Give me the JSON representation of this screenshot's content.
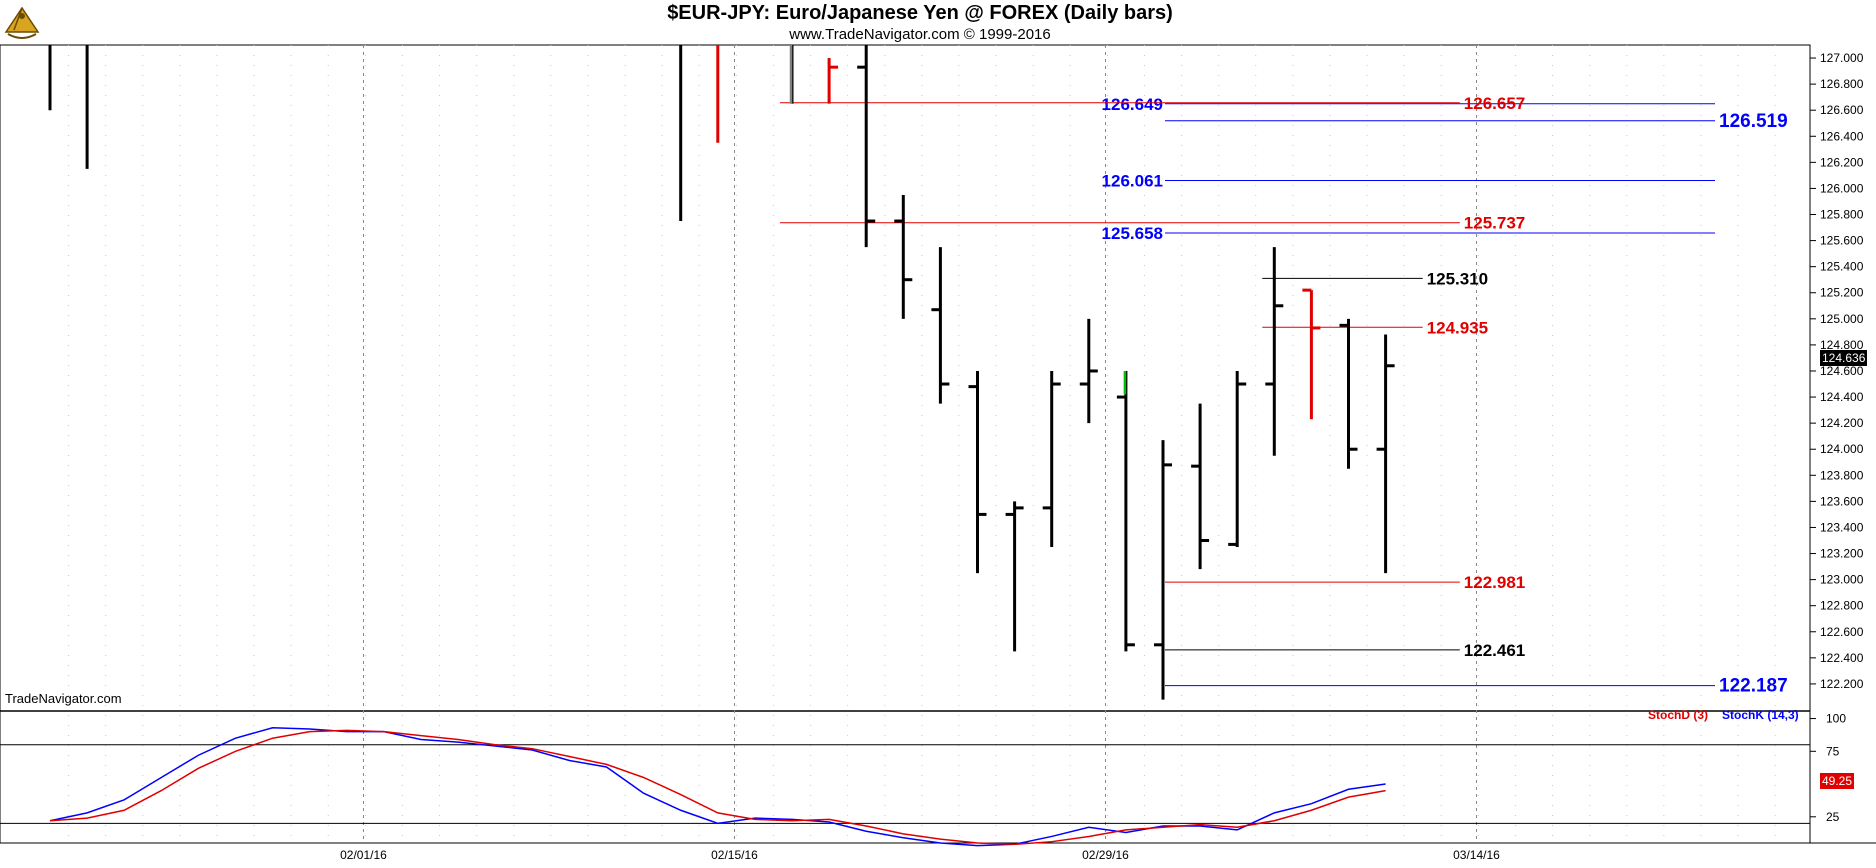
{
  "header": {
    "title": "$EUR-JPY:  Euro/Japanese Yen @ FOREX  (Daily bars)",
    "subtitle": "www.TradeNavigator.com © 1999-2016",
    "watermark": "TradeNavigator.com",
    "logo_icon": "sextant-logo-icon"
  },
  "colors": {
    "bar": "#000000",
    "bar_down": "#e00000",
    "bar_up_highlight": "#00c000",
    "fib_blue": "#0000ff",
    "fib_red": "#e00000",
    "fib_black": "#000000",
    "grid": "#999999"
  },
  "chart_data": [
    {
      "type": "ohlc",
      "ylim": [
        122.0,
        127.1
      ],
      "y_ticks": [
        "127.000",
        "126.800",
        "126.600",
        "126.400",
        "126.200",
        "126.000",
        "125.800",
        "125.600",
        "125.400",
        "125.200",
        "125.000",
        "124.800",
        "124.600",
        "124.400",
        "124.200",
        "124.000",
        "123.800",
        "123.600",
        "123.400",
        "123.200",
        "123.000",
        "122.800",
        "122.600",
        "122.400",
        "122.200"
      ],
      "x_ticks": [
        {
          "label": "02/01/16",
          "index": 9
        },
        {
          "label": "02/15/16",
          "index": 19
        },
        {
          "label": "02/29/16",
          "index": 29
        },
        {
          "label": "03/14/16",
          "index": 39
        }
      ],
      "n_slots": 46,
      "last_price_label": "124.636",
      "bars": [
        {
          "i": 0,
          "h": 127.3,
          "l": 126.6,
          "o": null,
          "c": null,
          "color": "bar"
        },
        {
          "i": 1,
          "h": 127.3,
          "l": 126.15,
          "o": null,
          "c": null,
          "color": "bar"
        },
        {
          "i": 17,
          "h": 127.3,
          "l": 125.75,
          "o": null,
          "c": null,
          "color": "bar"
        },
        {
          "i": 18,
          "h": 127.3,
          "l": 126.35,
          "o": null,
          "c": null,
          "color": "bar_down"
        },
        {
          "i": 20,
          "h": 127.3,
          "l": 126.65,
          "o": null,
          "c": null,
          "color": "bar"
        },
        {
          "i": 21,
          "h": 127.0,
          "l": 126.65,
          "o": null,
          "c": 126.93,
          "color": "bar_down"
        },
        {
          "i": 22,
          "h": 127.3,
          "l": 125.55,
          "o": 126.93,
          "c": 125.75,
          "color": "bar"
        },
        {
          "i": 23,
          "h": 125.95,
          "l": 125.0,
          "o": 125.75,
          "c": 125.3,
          "color": "bar"
        },
        {
          "i": 24,
          "h": 125.55,
          "l": 124.35,
          "o": 125.07,
          "c": 124.5,
          "color": "bar"
        },
        {
          "i": 25,
          "h": 124.6,
          "l": 123.05,
          "o": 124.48,
          "c": 123.5,
          "color": "bar"
        },
        {
          "i": 26,
          "h": 123.6,
          "l": 122.45,
          "o": 123.5,
          "c": 123.55,
          "color": "bar"
        },
        {
          "i": 27,
          "h": 124.6,
          "l": 123.25,
          "o": 123.55,
          "c": 124.5,
          "color": "bar"
        },
        {
          "i": 28,
          "h": 125.0,
          "l": 124.2,
          "o": 124.5,
          "c": 124.6,
          "color": "bar"
        },
        {
          "i": 29,
          "h": 124.6,
          "l": 122.45,
          "o": 124.4,
          "c": 122.5,
          "color": "bar"
        },
        {
          "i": 30,
          "h": 124.07,
          "l": 122.08,
          "o": 122.5,
          "c": 123.88,
          "color": "bar"
        },
        {
          "i": 31,
          "h": 124.35,
          "l": 123.08,
          "o": 123.87,
          "c": 123.3,
          "color": "bar"
        },
        {
          "i": 32,
          "h": 124.6,
          "l": 123.25,
          "o": 123.27,
          "c": 124.5,
          "color": "bar"
        },
        {
          "i": 33,
          "h": 125.55,
          "l": 123.95,
          "o": 124.5,
          "c": 125.1,
          "color": "bar"
        },
        {
          "i": 34,
          "h": 125.22,
          "l": 124.23,
          "o": 125.22,
          "c": 124.93,
          "color": "bar_down"
        },
        {
          "i": 35,
          "h": 125.0,
          "l": 123.85,
          "o": 124.95,
          "c": 124.0,
          "color": "bar"
        },
        {
          "i": 36,
          "h": 124.88,
          "l": 123.05,
          "o": 124.0,
          "c": 124.64,
          "color": "bar"
        }
      ],
      "extra_marks": [
        {
          "i": 20,
          "from": 127.1,
          "to": 126.65,
          "color": "bar_gray"
        },
        {
          "i": 29,
          "from": 124.6,
          "to": 124.42,
          "color": "bar_up_highlight"
        }
      ],
      "levels": [
        {
          "value": 126.649,
          "label": "126.649",
          "color": "fib_blue",
          "from": 30,
          "to": 46,
          "label_side": "left",
          "label_at": 30,
          "bold": true
        },
        {
          "value": 126.657,
          "label": "126.657",
          "color": "fib_red",
          "from": 20,
          "to": 38,
          "label_side": "right",
          "label_at": 38,
          "bold": true
        },
        {
          "value": 126.519,
          "label": "126.519",
          "color": "fib_blue",
          "from": 30,
          "to": 46,
          "label_side": "right",
          "label_at": 46,
          "bold": true,
          "big": true
        },
        {
          "value": 126.061,
          "label": "126.061",
          "color": "fib_blue",
          "from": 30,
          "to": 46,
          "label_side": "left",
          "label_at": 30,
          "bold": true
        },
        {
          "value": 125.737,
          "label": "125.737",
          "color": "fib_red",
          "from": 20,
          "to": 38,
          "label_side": "right",
          "label_at": 38,
          "bold": true
        },
        {
          "value": 125.658,
          "label": "125.658",
          "color": "fib_blue",
          "from": 30,
          "to": 46,
          "label_side": "left",
          "label_at": 30,
          "bold": true
        },
        {
          "value": 125.31,
          "label": "125.310",
          "color": "fib_black",
          "from": 33,
          "to": 37,
          "label_side": "right",
          "label_at": 37,
          "bold": false
        },
        {
          "value": 124.935,
          "label": "124.935",
          "color": "fib_red",
          "from": 33,
          "to": 37,
          "label_side": "right",
          "label_at": 37,
          "bold": true
        },
        {
          "value": 122.981,
          "label": "122.981",
          "color": "fib_red",
          "from": 30,
          "to": 38,
          "label_side": "right",
          "label_at": 38,
          "bold": true
        },
        {
          "value": 122.461,
          "label": "122.461",
          "color": "fib_black",
          "from": 30,
          "to": 38,
          "label_side": "right",
          "label_at": 38,
          "bold": false
        },
        {
          "value": 122.187,
          "label": "122.187",
          "color": "fib_blue",
          "from": 30,
          "to": 46,
          "label_side": "right",
          "label_at": 46,
          "bold": true,
          "big": true
        }
      ]
    },
    {
      "type": "line",
      "ylim": [
        5,
        105
      ],
      "y_ticks": [
        "100",
        "75",
        "25"
      ],
      "hlines": [
        80,
        20
      ],
      "stoch_value_label": "49.25",
      "legend": [
        {
          "name": "StochD (3)",
          "color": "fib_red"
        },
        {
          "name": "StochK (14,3)",
          "color": "fib_blue"
        }
      ],
      "series": [
        {
          "name": "StochK (14,3)",
          "color": "fib_blue",
          "x": [
            0,
            1,
            2,
            3,
            4,
            5,
            6,
            7,
            8,
            9,
            10,
            11,
            12,
            13,
            14,
            15,
            16,
            17,
            18,
            19,
            20,
            21,
            22,
            23,
            24,
            25,
            26,
            27,
            28,
            29,
            30,
            31,
            32,
            33,
            34,
            35,
            36
          ],
          "values": [
            22,
            28,
            38,
            55,
            72,
            85,
            93,
            92,
            90,
            90,
            84,
            82,
            79,
            76,
            68,
            63,
            43,
            30,
            20,
            24,
            23,
            21,
            14,
            9,
            5,
            3,
            4,
            10,
            17,
            13,
            18,
            18,
            15,
            28,
            35,
            46,
            50
          ]
        },
        {
          "name": "StochD (3)",
          "color": "fib_red",
          "x": [
            0,
            1,
            2,
            3,
            4,
            5,
            6,
            7,
            8,
            9,
            10,
            11,
            12,
            13,
            14,
            15,
            16,
            17,
            18,
            19,
            20,
            21,
            22,
            23,
            24,
            25,
            26,
            27,
            28,
            29,
            30,
            31,
            32,
            33,
            34,
            35,
            36
          ],
          "values": [
            22,
            24,
            30,
            45,
            62,
            75,
            85,
            90,
            91,
            90,
            87,
            84,
            80,
            77,
            71,
            65,
            55,
            42,
            28,
            23,
            22,
            23,
            18,
            12,
            8,
            5,
            4,
            6,
            10,
            15,
            17,
            19,
            17,
            22,
            30,
            40,
            45
          ]
        }
      ]
    }
  ]
}
